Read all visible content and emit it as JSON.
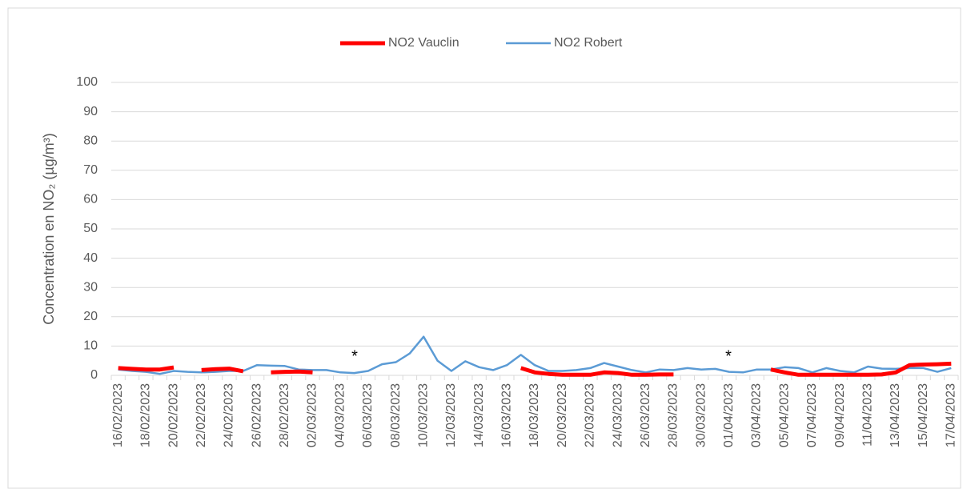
{
  "chart_data": {
    "type": "line",
    "ylabel": "Concentration en NO₂ (µg/m³)",
    "categories": [
      "16/02/2023",
      null,
      "18/02/2023",
      null,
      "20/02/2023",
      null,
      "22/02/2023",
      null,
      "24/02/2023",
      null,
      "26/02/2023",
      null,
      "28/02/2023",
      null,
      "02/03/2023",
      null,
      "04/03/2023",
      null,
      "06/03/2023",
      null,
      "08/03/2023",
      null,
      "10/03/2023",
      null,
      "12/03/2023",
      null,
      "14/03/2023",
      null,
      "16/03/2023",
      null,
      "18/03/2023",
      null,
      "20/03/2023",
      null,
      "22/03/2023",
      null,
      "24/03/2023",
      null,
      "26/03/2023",
      null,
      "28/03/2023",
      null,
      "30/03/2023",
      null,
      "01/04/2023",
      null,
      "03/04/2023",
      null,
      "05/04/2023",
      null,
      "07/04/2023",
      null,
      "09/04/2023",
      null,
      "11/04/2023",
      null,
      "13/04/2023",
      null,
      "15/04/2023",
      null,
      "17/04/2023"
    ],
    "series": [
      {
        "name": "NO2 Vauclin",
        "color": "#ff0000",
        "width": 5,
        "values": [
          2.5,
          2.2,
          2,
          2,
          2.7,
          null,
          1.8,
          2.1,
          2.3,
          1.4,
          null,
          1,
          1.2,
          1.3,
          1,
          null,
          null,
          null,
          null,
          null,
          null,
          null,
          null,
          null,
          null,
          null,
          null,
          null,
          null,
          2.5,
          1,
          0.5,
          0.2,
          0.2,
          0.2,
          1,
          0.8,
          0.2,
          0.2,
          0.3,
          0.3,
          null,
          null,
          null,
          null,
          null,
          null,
          2,
          1,
          0.2,
          0.2,
          0.2,
          0.2,
          0.2,
          0.2,
          0.3,
          1,
          3.5,
          3.7,
          3.8,
          4
        ]
      },
      {
        "name": "NO2 Robert",
        "color": "#5b9bd5",
        "width": 2.5,
        "values": [
          2,
          1.5,
          1.2,
          0.5,
          1.5,
          1.2,
          1,
          1.2,
          1.5,
          1.5,
          3.5,
          3.3,
          3.2,
          2,
          1.8,
          1.8,
          1,
          0.8,
          1.5,
          3.8,
          4.5,
          7.5,
          13.2,
          5,
          1.5,
          4.8,
          2.8,
          1.8,
          3.5,
          7,
          3.5,
          1.5,
          1.5,
          1.8,
          2.5,
          4.2,
          3,
          1.8,
          1,
          2,
          1.8,
          2.5,
          2,
          2.2,
          1.2,
          1,
          2,
          2,
          2.8,
          2.5,
          1,
          2.5,
          1.5,
          1,
          3,
          2.3,
          2.2,
          2.5,
          2.5,
          1.2,
          2.5
        ]
      }
    ],
    "ylim": [
      0,
      100
    ],
    "yticks": [
      0,
      10,
      20,
      30,
      40,
      50,
      60,
      70,
      80,
      90,
      100
    ],
    "grid": true,
    "legend": "top",
    "annotations": [
      "*",
      "*"
    ]
  }
}
